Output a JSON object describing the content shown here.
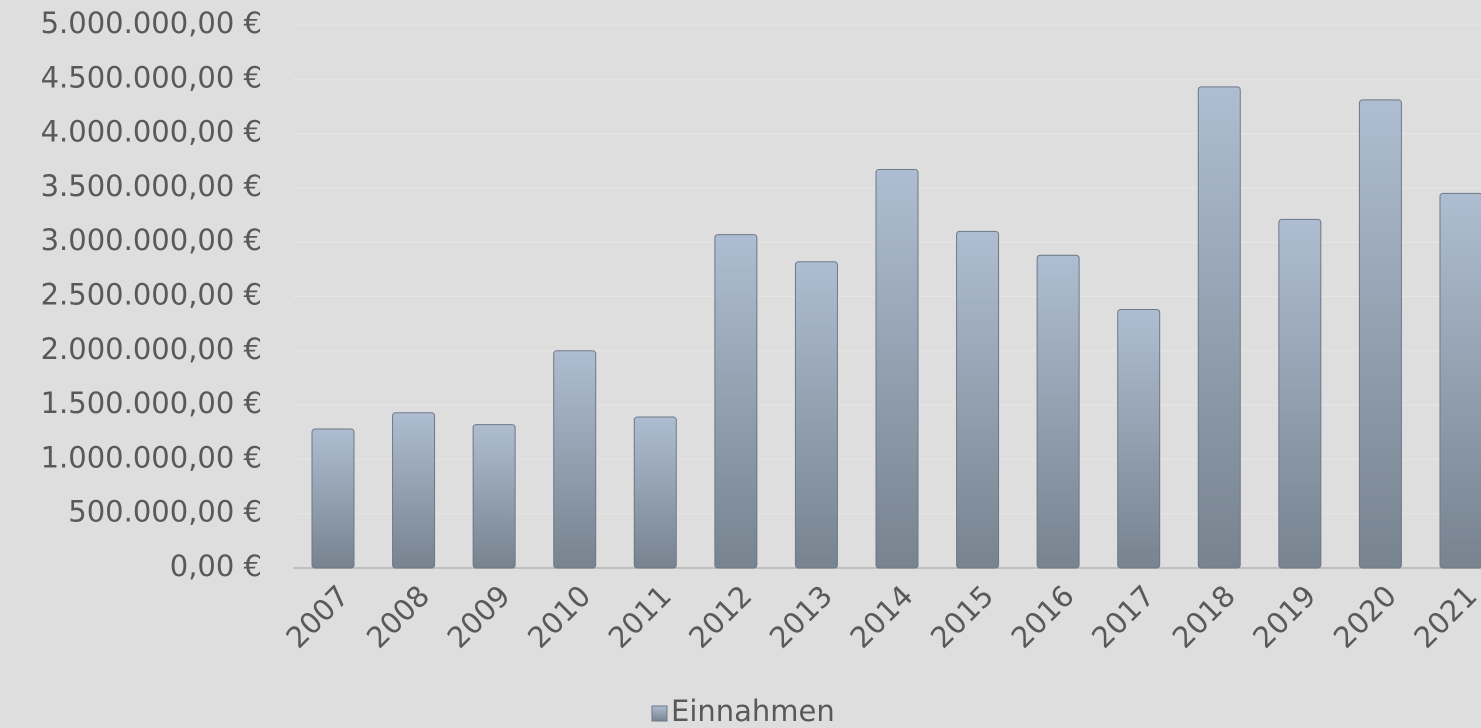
{
  "chart_data": {
    "type": "bar",
    "categories": [
      "2007",
      "2008",
      "2009",
      "2010",
      "2011",
      "2012",
      "2013",
      "2014",
      "2015",
      "2016",
      "2017",
      "2018",
      "2019",
      "2020",
      "2021"
    ],
    "series": [
      {
        "name": "Einnahmen",
        "color": "#8f9db0",
        "values": [
          1280000,
          1430000,
          1320000,
          2000000,
          1390000,
          3070000,
          2820000,
          3670000,
          3100000,
          2880000,
          2380000,
          4430000,
          3210000,
          4310000,
          3450000
        ]
      }
    ],
    "ylim": [
      0,
      5000000
    ],
    "yticks": [
      {
        "value": 0,
        "label": "0,00 €"
      },
      {
        "value": 500000,
        "label": "500.000,00 €"
      },
      {
        "value": 1000000,
        "label": "1.000.000,00 €"
      },
      {
        "value": 1500000,
        "label": "1.500.000,00 €"
      },
      {
        "value": 2000000,
        "label": "2.000.000,00 €"
      },
      {
        "value": 2500000,
        "label": "2.500.000,00 €"
      },
      {
        "value": 3000000,
        "label": "3.000.000,00 €"
      },
      {
        "value": 3500000,
        "label": "3.500.000,00 €"
      },
      {
        "value": 4000000,
        "label": "4.000.000,00 €"
      },
      {
        "value": 4500000,
        "label": "4.500.000,00 €"
      },
      {
        "value": 5000000,
        "label": "5.000.000,00 €"
      }
    ],
    "grid": true,
    "legend": "bottom"
  }
}
